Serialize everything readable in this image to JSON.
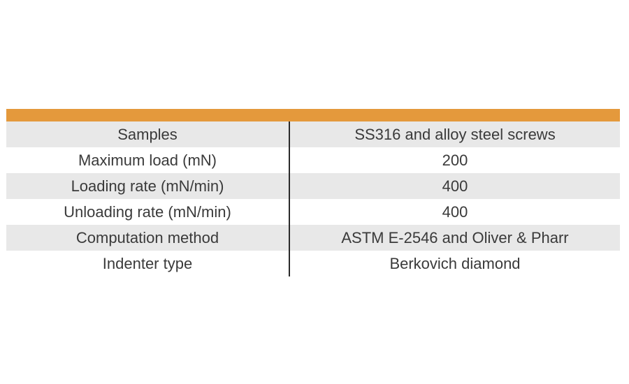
{
  "table": {
    "rows": [
      {
        "label": "Samples",
        "value": "SS316 and alloy steel screws"
      },
      {
        "label": "Maximum load (mN)",
        "value": "200"
      },
      {
        "label": "Loading rate (mN/min)",
        "value": "400"
      },
      {
        "label": "Unloading rate (mN/min)",
        "value": "400"
      },
      {
        "label": "Computation method",
        "value": "ASTM E-2546 and Oliver & Pharr"
      },
      {
        "label": "Indenter type",
        "value": "Berkovich diamond"
      }
    ],
    "colors": {
      "header_bar": "#E4993C",
      "row_alt": "#E8E8E8",
      "row_default": "#FFFFFF",
      "text": "#3A3A3A",
      "divider": "#2A2A2A",
      "background": "#FFFFFF"
    }
  }
}
